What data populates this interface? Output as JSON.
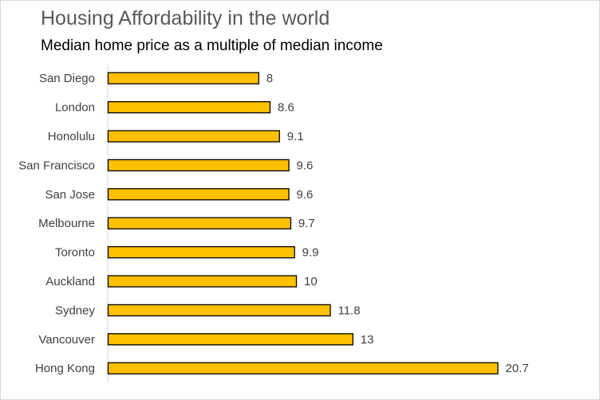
{
  "chart_data": {
    "type": "bar",
    "orientation": "horizontal",
    "title": "Housing Affordability in the world",
    "subtitle": "Median home price as a multiple of median income",
    "categories": [
      "San Diego",
      "London",
      "Honolulu",
      "San Francisco",
      "San Jose",
      "Melbourne",
      "Toronto",
      "Auckland",
      "Sydney",
      "Vancouver",
      "Hong Kong"
    ],
    "values": [
      8,
      8.6,
      9.1,
      9.6,
      9.6,
      9.7,
      9.9,
      10,
      11.8,
      13,
      20.7
    ],
    "value_labels": [
      "8",
      "8.6",
      "9.1",
      "9.6",
      "9.6",
      "9.7",
      "9.9",
      "10",
      "11.8",
      "13",
      "20.7"
    ],
    "xlim": [
      0,
      22
    ],
    "grid": false,
    "legend": "none",
    "bar_color": "#FFC000",
    "bar_outline_color": "#000000"
  }
}
